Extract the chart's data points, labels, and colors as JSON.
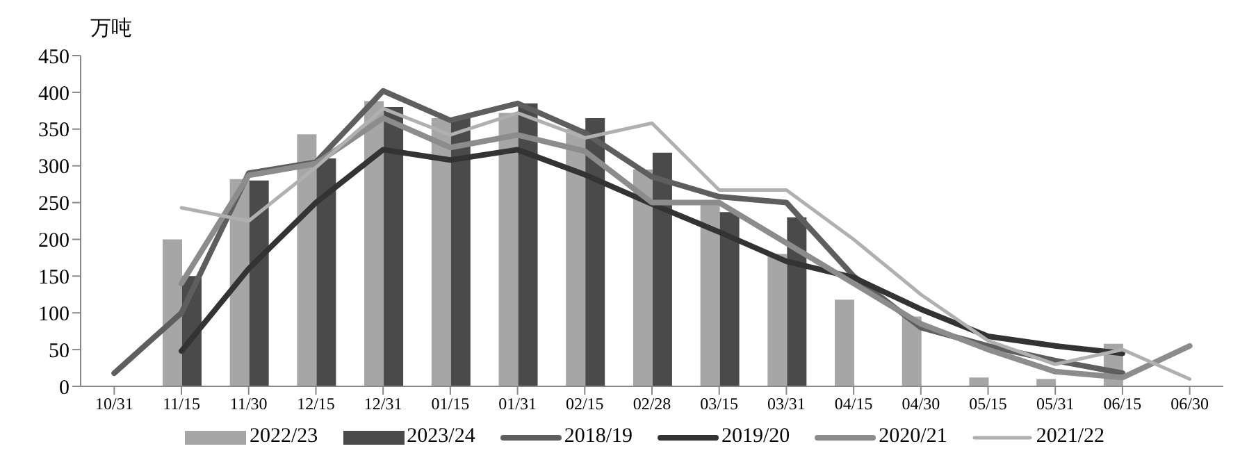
{
  "chart_data": {
    "type": "bar",
    "ylabel": "万吨",
    "categories": [
      "10/31",
      "11/15",
      "11/30",
      "12/15",
      "12/31",
      "01/15",
      "01/31",
      "02/15",
      "02/28",
      "03/15",
      "03/31",
      "04/15",
      "04/30",
      "05/15",
      "05/31",
      "06/15",
      "06/30"
    ],
    "series": [
      {
        "name": "2022/23",
        "color": "#a6a6a6",
        "values": [
          null,
          200,
          282,
          343,
          388,
          365,
          372,
          350,
          295,
          248,
          180,
          118,
          95,
          12,
          10,
          58,
          null
        ]
      },
      {
        "name": "2023/24",
        "color": "#4a4a4a",
        "values": [
          null,
          150,
          280,
          310,
          380,
          365,
          385,
          365,
          318,
          237,
          230,
          null,
          null,
          null,
          null,
          null,
          null
        ]
      },
      {
        "name": "2018/19",
        "type": "line",
        "color": "#5e5e5e",
        "values": [
          18,
          100,
          290,
          305,
          402,
          362,
          385,
          345,
          285,
          258,
          250,
          150,
          80,
          55,
          35,
          18,
          null
        ]
      },
      {
        "name": "2019/20",
        "type": "line",
        "color": "#333333",
        "values": [
          null,
          48,
          160,
          250,
          322,
          308,
          322,
          288,
          248,
          210,
          170,
          148,
          105,
          68,
          55,
          45,
          null
        ]
      },
      {
        "name": "2020/21",
        "type": "line",
        "color": "#8c8c8c",
        "values": [
          null,
          140,
          287,
          303,
          365,
          325,
          342,
          320,
          250,
          250,
          195,
          140,
          85,
          50,
          20,
          12,
          55
        ]
      },
      {
        "name": "2021/22",
        "type": "line",
        "color": "#b0b0b0",
        "values": [
          null,
          243,
          225,
          298,
          378,
          342,
          372,
          338,
          358,
          267,
          267,
          200,
          125,
          62,
          30,
          50,
          10
        ]
      }
    ],
    "ylim": [
      0,
      450
    ],
    "yticks": [
      0,
      50,
      100,
      150,
      200,
      250,
      300,
      350,
      400,
      450
    ],
    "grid": false,
    "legend": "bottom"
  }
}
